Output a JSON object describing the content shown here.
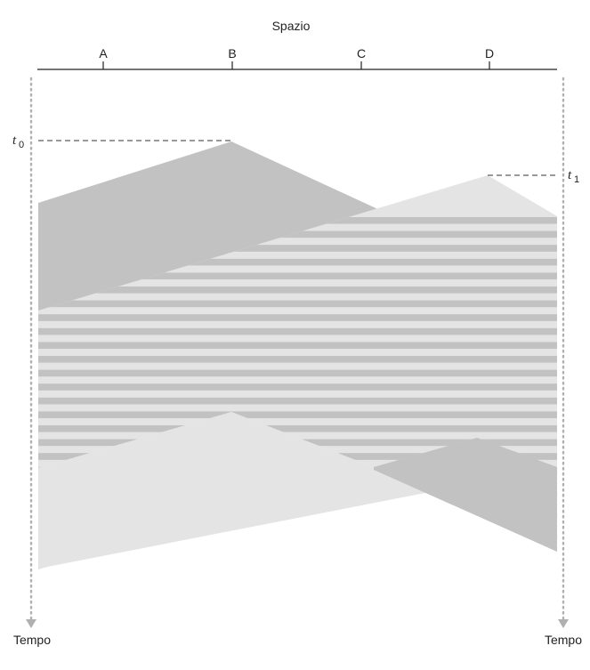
{
  "title": "Spazio",
  "stations": [
    {
      "label": "A"
    },
    {
      "label": "B"
    },
    {
      "label": "C"
    },
    {
      "label": "D"
    }
  ],
  "time_left_label": "Tempo",
  "time_right_label": "Tempo",
  "t0": {
    "symbol": "t",
    "subscript": "0"
  },
  "t1": {
    "symbol": "t",
    "subscript": "1"
  },
  "colors": {
    "dark_gray": "#c2c2c2",
    "light_gray": "#e4e4e4",
    "axis": "#222222",
    "dotted": "#b0b0b0"
  }
}
